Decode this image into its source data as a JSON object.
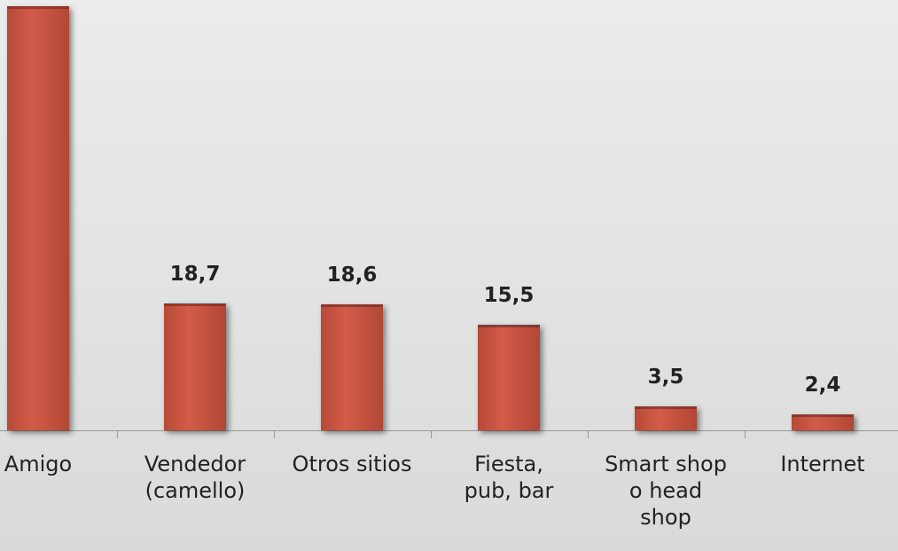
{
  "chart_data": {
    "type": "bar",
    "categories": [
      "Amigo",
      "Vendedor\n(camello)",
      "Otros sitios",
      "Fiesta,\npub, bar",
      "Smart shop\no head\nshop",
      "Internet"
    ],
    "values": [
      62.5,
      18.7,
      18.6,
      15.5,
      3.5,
      2.4
    ],
    "value_labels": [
      null,
      "18,7",
      "18,6",
      "15,5",
      "3,5",
      "2,4"
    ],
    "color": "#d0533f",
    "ylim": [
      0,
      65
    ]
  }
}
